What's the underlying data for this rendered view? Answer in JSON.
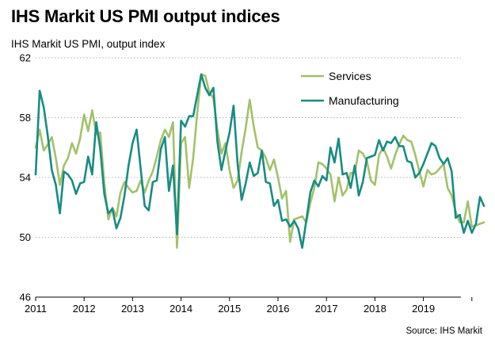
{
  "title": "IHS Markit US PMI output indices",
  "subtitle": "IHS Markit  US PMI, output index",
  "source": "Source: IHS  Markit",
  "chart_data": {
    "type": "line",
    "x_start": "2011-01",
    "x_labels": [
      "2011",
      "2012",
      "2013",
      "2014",
      "2015",
      "2016",
      "2017",
      "2018",
      "2019"
    ],
    "ylim": [
      46,
      62
    ],
    "y_ticks": [
      46,
      50,
      54,
      58,
      62
    ],
    "grid": "horizontal dotted",
    "legend_position": "top-right",
    "series": [
      {
        "name": "Services",
        "color": "#a3c16a",
        "values": [
          56.0,
          57.2,
          55.8,
          56.2,
          56.7,
          55.3,
          53.5,
          54.8,
          55.3,
          56.3,
          55.6,
          56.6,
          58.2,
          57.1,
          58.5,
          56.9,
          57.0,
          53.6,
          51.2,
          52.0,
          51.4,
          53.0,
          53.7,
          53.3,
          53.0,
          53.1,
          53.8,
          53.0,
          53.8,
          54.4,
          55.4,
          56.5,
          57.2,
          56.7,
          57.7,
          49.3,
          56.3,
          56.7,
          53.3,
          55.3,
          58.3,
          60.9,
          60.8,
          59.7,
          59.3,
          57.2,
          55.6,
          56.3,
          54.5,
          53.3,
          53.8,
          55.7,
          57.3,
          59.2,
          57.4,
          56.0,
          55.8,
          55.3,
          54.5,
          55.2,
          54.0,
          52.6,
          53.1,
          49.7,
          51.2,
          51.3,
          51.4,
          51.0,
          52.3,
          53.3,
          55.0,
          54.9,
          54.6,
          54.2,
          52.4,
          54.0,
          52.8,
          53.2,
          54.3,
          54.3,
          55.8,
          55.6,
          55.1,
          53.8,
          53.5,
          55.5,
          56.0,
          55.4,
          54.6,
          55.5,
          56.2,
          56.8,
          56.5,
          56.4,
          55.5,
          54.4,
          53.4,
          54.5,
          54.2,
          54.3,
          54.6,
          54.9,
          53.3,
          52.8,
          51.7,
          51.0,
          51.0,
          52.4,
          50.7,
          50.8,
          50.9,
          51.0
        ],
        "data_name": "services-line"
      },
      {
        "name": "Manufacturing",
        "color": "#188c82",
        "values": [
          54.2,
          59.8,
          58.7,
          56.8,
          54.5,
          53.5,
          51.6,
          54.4,
          54.2,
          53.8,
          52.9,
          53.6,
          53.7,
          55.4,
          54.2,
          57.7,
          55.9,
          52.9,
          51.6,
          51.9,
          50.6,
          51.3,
          52.8,
          54.8,
          56.3,
          57.2,
          54.6,
          52.1,
          51.8,
          53.7,
          53.8,
          55.9,
          56.7,
          53.1,
          54.8,
          50.2,
          57.8,
          57.4,
          58.1,
          58.1,
          59.5,
          60.9,
          60.0,
          59.5,
          60.0,
          56.4,
          54.5,
          55.8,
          57.0,
          58.8,
          54.9,
          52.5,
          53.6,
          55.0,
          54.1,
          54.3,
          55.8,
          53.7,
          53.6,
          52.1,
          52.5,
          51.1,
          51.2,
          50.7,
          51.1,
          50.6,
          49.3,
          51.1,
          53.0,
          53.8,
          53.4,
          54.1,
          53.8,
          56.0,
          55.0,
          56.6,
          54.2,
          54.3,
          53.3,
          54.8,
          52.8,
          53.7,
          55.3,
          55.4,
          55.5,
          56.5,
          55.8,
          56.4,
          56.3,
          56.7,
          56.1,
          56.1,
          55.1,
          55.0,
          54.0,
          54.3,
          54.9,
          55.6,
          56.3,
          56.1,
          55.3,
          54.9,
          55.3,
          54.4,
          51.3,
          51.5,
          50.3,
          51.1,
          50.3,
          50.9,
          52.7,
          52.1
        ],
        "data_name": "manufacturing-line"
      }
    ]
  }
}
